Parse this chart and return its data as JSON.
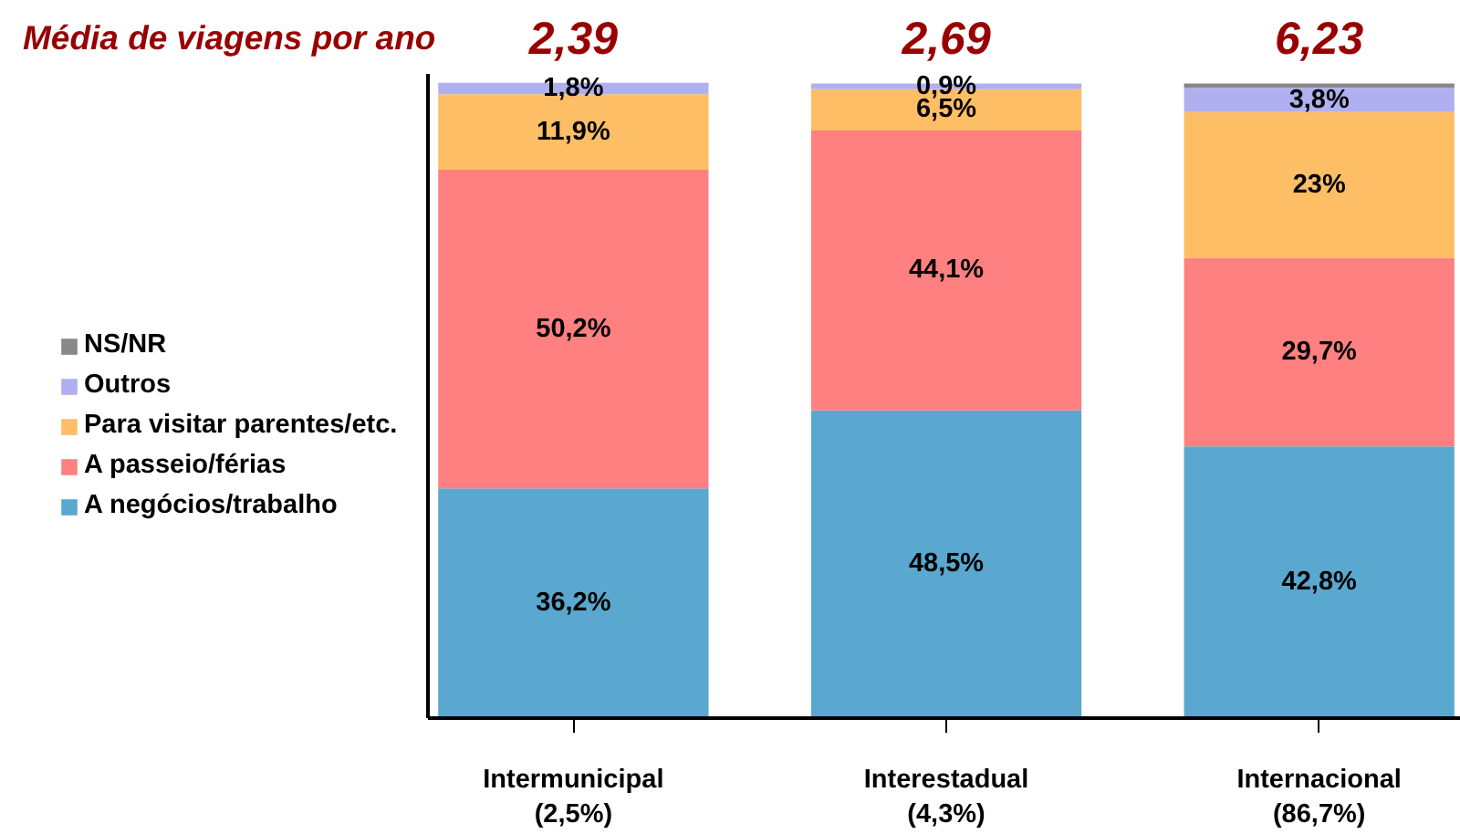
{
  "chart_data": {
    "type": "bar",
    "stacked": true,
    "title": "Média de viagens por ano",
    "categories": [
      "Intermunicipal\n(2,5%)",
      "Interestadual\n(4,3%)",
      "Internacional\n(86,7%)"
    ],
    "series": [
      {
        "name": "A negócios/trabalho",
        "color": "#5aa8cf",
        "values": [
          36.2,
          48.5,
          42.8
        ],
        "value_labels": [
          "36,2%",
          "48,5%",
          "42,8%"
        ]
      },
      {
        "name": "A passeio/férias",
        "color": "#ff8080",
        "values": [
          50.2,
          44.1,
          29.7
        ],
        "value_labels": [
          "50,2%",
          "44,1%",
          "29,7%"
        ]
      },
      {
        "name": "Para visitar parentes/etc.",
        "color": "#fdbe66",
        "values": [
          11.9,
          6.5,
          23
        ],
        "value_labels": [
          "11,9%",
          "6,5%",
          "23%"
        ]
      },
      {
        "name": "Outros",
        "color": "#b0b0f0",
        "values": [
          1.8,
          0.9,
          3.8
        ],
        "value_labels": [
          "1,8%",
          "0,9%",
          "3,8%"
        ]
      },
      {
        "name": "NS/NR",
        "color": "#888888",
        "values": [
          null,
          null,
          0.7
        ],
        "value_labels": [
          null,
          null,
          null
        ]
      }
    ],
    "ylim": [
      0,
      101.5
    ],
    "legend": "left",
    "tick_labels": "x",
    "annotations": [
      "2,39",
      "2,69",
      "6,23"
    ]
  }
}
